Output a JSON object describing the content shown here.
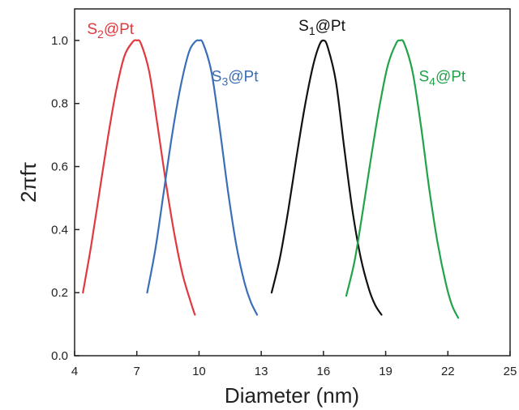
{
  "chart_data": {
    "type": "line",
    "xlabel": "Diameter (nm)",
    "ylabel": "2πfτ",
    "xlim": [
      4,
      25
    ],
    "ylim": [
      0,
      1.1
    ],
    "xticks": [
      4,
      7,
      10,
      13,
      16,
      19,
      22,
      25
    ],
    "yticks": [
      0.0,
      0.2,
      0.4,
      0.6,
      0.8,
      1.0
    ],
    "xtick_labels": [
      "4",
      "7",
      "10",
      "13",
      "16",
      "19",
      "22",
      "25"
    ],
    "ytick_labels": [
      "0.0",
      "0.2",
      "0.4",
      "0.6",
      "0.8",
      "1.0"
    ],
    "grid": false,
    "series": [
      {
        "name": "S2@Pt",
        "label_main": "S",
        "label_sub": "2",
        "label_rest": "@Pt",
        "color": "#e0393e",
        "label_x": 4.6,
        "label_y": 1.02,
        "x": [
          4.4,
          4.8,
          5.2,
          5.6,
          6.0,
          6.4,
          6.8,
          7.0,
          7.2,
          7.6,
          8.0,
          8.4,
          8.8,
          9.2,
          9.6,
          9.8
        ],
        "y": [
          0.2,
          0.35,
          0.52,
          0.69,
          0.84,
          0.95,
          0.995,
          1.0,
          0.99,
          0.9,
          0.73,
          0.55,
          0.39,
          0.26,
          0.17,
          0.13
        ]
      },
      {
        "name": "S3@Pt",
        "label_main": "S",
        "label_sub": "3",
        "label_rest": "@Pt",
        "color": "#3a6fb8",
        "label_x": 10.6,
        "label_y": 0.87,
        "x": [
          7.5,
          7.9,
          8.3,
          8.7,
          9.1,
          9.5,
          9.8,
          10.0,
          10.2,
          10.6,
          11.0,
          11.4,
          11.8,
          12.2,
          12.5,
          12.8
        ],
        "y": [
          0.2,
          0.34,
          0.52,
          0.7,
          0.85,
          0.96,
          0.995,
          1.0,
          0.99,
          0.9,
          0.72,
          0.52,
          0.35,
          0.23,
          0.17,
          0.13
        ]
      },
      {
        "name": "S1@Pt",
        "label_main": "S",
        "label_sub": "1",
        "label_rest": "@Pt",
        "color": "#111111",
        "label_x": 14.8,
        "label_y": 1.03,
        "x": [
          13.5,
          13.9,
          14.3,
          14.7,
          15.1,
          15.5,
          15.8,
          16.0,
          16.2,
          16.6,
          17.0,
          17.4,
          17.8,
          18.2,
          18.5,
          18.8
        ],
        "y": [
          0.2,
          0.31,
          0.46,
          0.63,
          0.79,
          0.92,
          0.985,
          1.0,
          0.98,
          0.87,
          0.66,
          0.46,
          0.31,
          0.21,
          0.16,
          0.13
        ]
      },
      {
        "name": "S4@Pt",
        "label_main": "S",
        "label_sub": "4",
        "label_rest": "@Pt",
        "color": "#22a34a",
        "label_x": 20.6,
        "label_y": 0.87,
        "x": [
          17.1,
          17.5,
          17.9,
          18.3,
          18.7,
          19.1,
          19.5,
          19.7,
          19.9,
          20.3,
          20.7,
          21.1,
          21.5,
          21.9,
          22.2,
          22.5
        ],
        "y": [
          0.19,
          0.3,
          0.46,
          0.63,
          0.79,
          0.92,
          0.99,
          1.0,
          0.99,
          0.9,
          0.73,
          0.53,
          0.36,
          0.23,
          0.16,
          0.12
        ]
      }
    ]
  }
}
